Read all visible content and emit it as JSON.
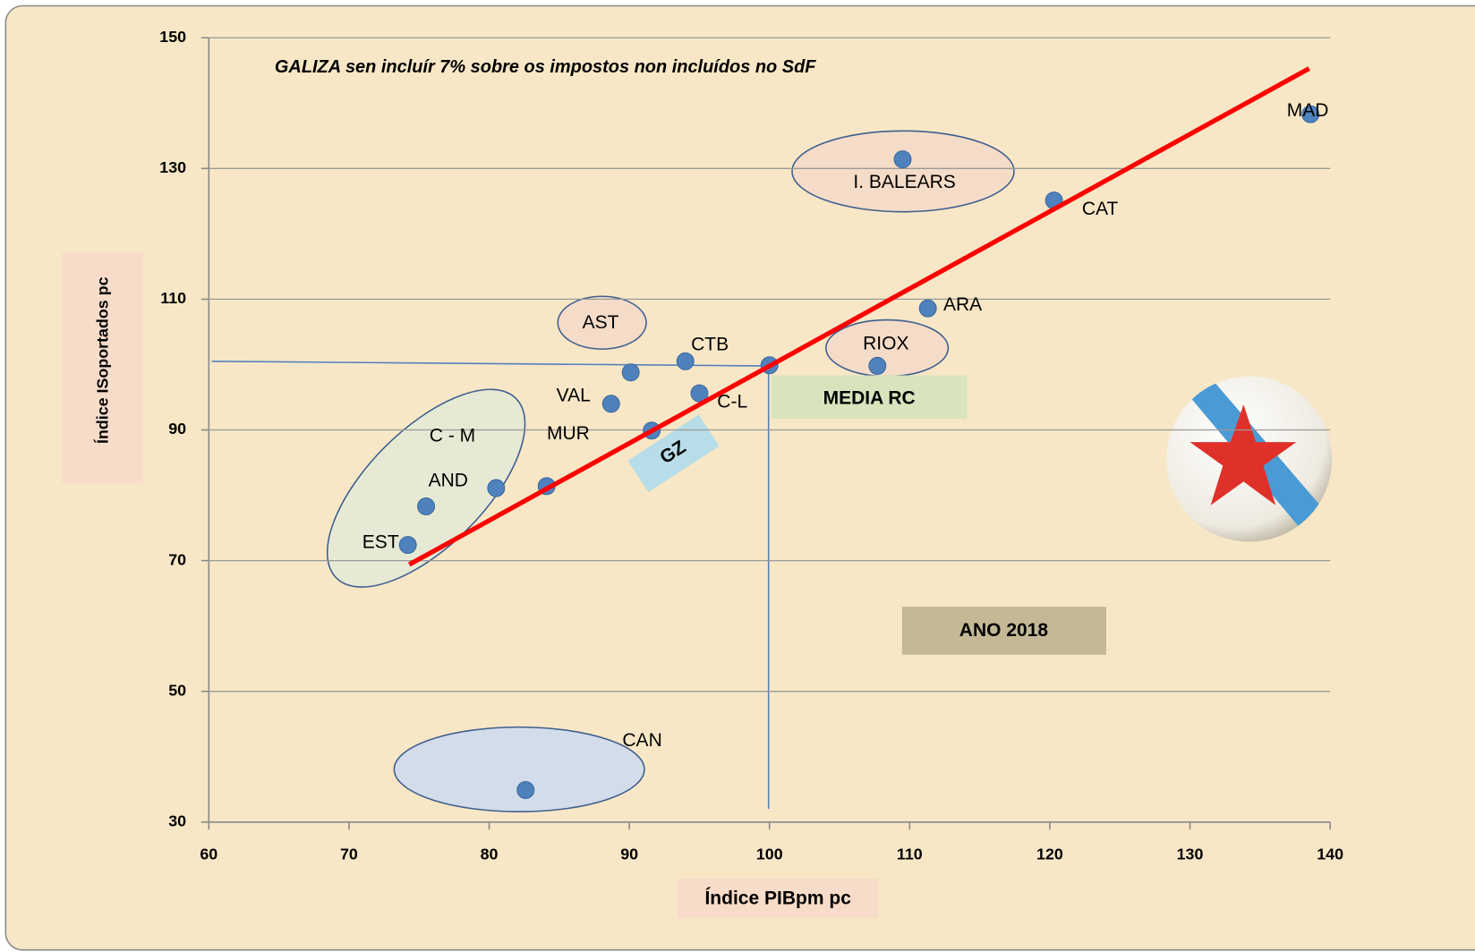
{
  "chart_data": {
    "type": "scatter",
    "title": "GALIZA sen incluír 7% sobre os impostos non incluídos no SdF",
    "x_label": "Índice PIBpm pc",
    "y_label": "Índice ISoportados pc",
    "x": [
      138.6,
      109.5,
      120.3,
      111.3,
      107.7,
      94.0,
      90.1,
      100.0,
      95.0,
      88.7,
      91.6,
      84.1,
      80.5,
      75.5,
      74.2,
      82.6
    ],
    "values": [
      138.3,
      131.4,
      125.1,
      108.6,
      99.8,
      100.5,
      98.8,
      99.9,
      95.6,
      94.0,
      89.9,
      81.4,
      81.1,
      78.3,
      72.4,
      34.9
    ],
    "point_labels": [
      "MAD",
      "I. BALEARS",
      "CAT",
      "ARA",
      "RIOX",
      "CTB",
      "AST",
      null,
      "C-L",
      "VAL",
      "GZ",
      "MUR",
      "AND",
      "C - M",
      "EST",
      "CAN"
    ],
    "color": "#4f81bd",
    "trendline": {
      "x": [
        74.3,
        138.5
      ],
      "values": [
        69.4,
        145.3
      ],
      "color": "#ff0000"
    },
    "annotations": [
      "MEDIA RC",
      "ANO 2018"
    ],
    "xlim": [
      60,
      140
    ],
    "xticks": [
      60,
      70,
      80,
      90,
      100,
      110,
      120,
      130,
      140
    ],
    "ylim": [
      30,
      150
    ],
    "yticks": [
      30,
      50,
      70,
      90,
      110,
      130,
      150
    ],
    "grid": true
  }
}
